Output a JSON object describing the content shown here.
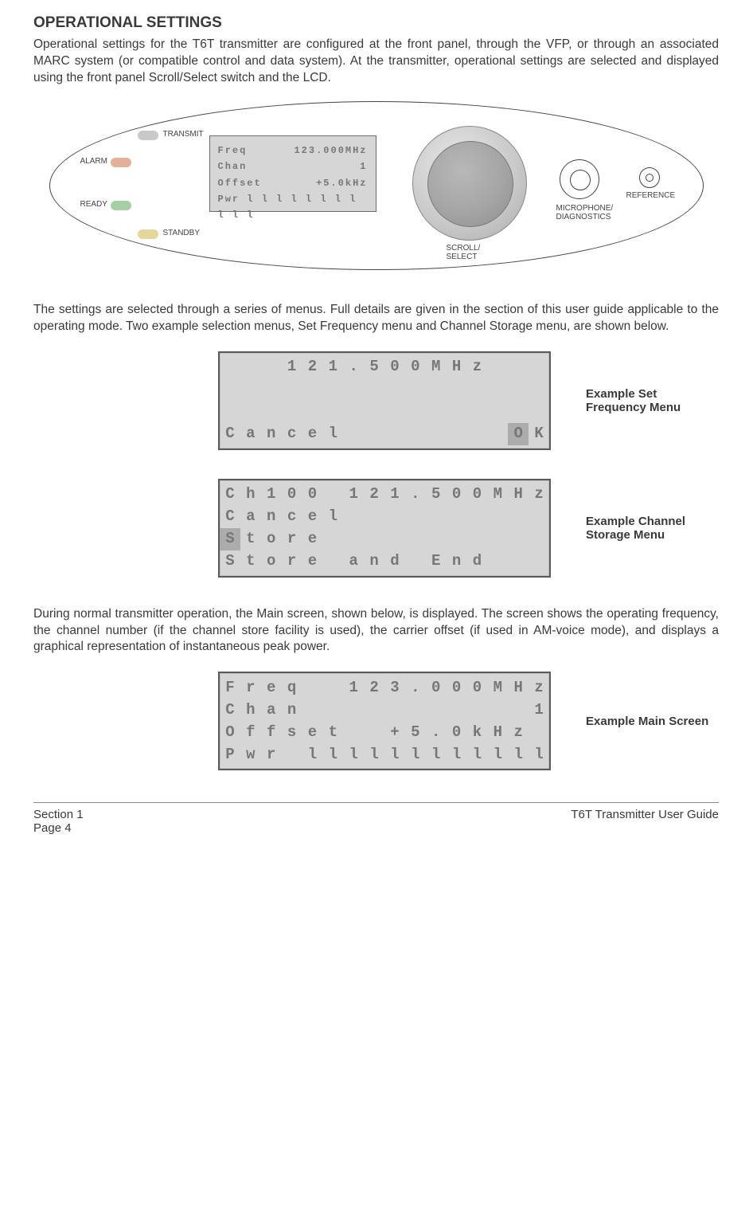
{
  "heading": "OPERATIONAL SETTINGS",
  "para1": "Operational settings for the T6T transmitter are configured at the front panel, through the VFP, or through an associated MARC system (or compatible control and data system). At the transmitter, operational settings are selected and displayed using the front panel Scroll/Select switch and the LCD.",
  "panel": {
    "led1": {
      "label": "TRANSMIT",
      "color": "#c9c9c9"
    },
    "led2": {
      "label": "ALARM",
      "color": "#e3b19a"
    },
    "led3": {
      "label": "READY",
      "color": "#a6cfa6"
    },
    "led4": {
      "label": "STANDBY",
      "color": "#e3d79a"
    },
    "lcd": {
      "l1a": "Freq",
      "l1b": "123.000MHz",
      "l2a": "Chan",
      "l2b": "1",
      "l3a": "Offset",
      "l3b": "+5.0kHz",
      "l4": "Pwr  l l l l l l l l l l l"
    },
    "knob_label": "SCROLL/\nSELECT",
    "port_label": "MICROPHONE/\nDIAGNOSTICS",
    "ref_label": "REFERENCE"
  },
  "para2": "The settings are selected through a series of menus. Full details are given in the section of this user guide applicable to the operating mode. Two example selection menus, Set Frequency menu and Channel Storage menu, are shown below.",
  "menu1": {
    "caption": "Example Set Frequency Menu",
    "rows": [
      [
        " ",
        " ",
        " ",
        "1",
        "2",
        "1",
        ".",
        "5",
        "0",
        "0",
        "M",
        "H",
        "z",
        " ",
        " ",
        " "
      ],
      [
        " ",
        " ",
        " ",
        " ",
        " ",
        " ",
        " ",
        " ",
        " ",
        " ",
        " ",
        " ",
        " ",
        " ",
        " ",
        " "
      ],
      [
        " ",
        " ",
        " ",
        " ",
        " ",
        " ",
        " ",
        " ",
        " ",
        " ",
        " ",
        " ",
        " ",
        " ",
        " ",
        " "
      ],
      [
        "C",
        "a",
        "n",
        "c",
        "e",
        "l",
        " ",
        " ",
        " ",
        " ",
        " ",
        " ",
        " ",
        " ",
        "O",
        "K"
      ]
    ],
    "cursor": [
      3,
      14
    ]
  },
  "menu2": {
    "caption": "Example Channel Storage Menu",
    "rows": [
      [
        "C",
        "h",
        "1",
        "0",
        "0",
        " ",
        "1",
        "2",
        "1",
        ".",
        "5",
        "0",
        "0",
        "M",
        "H",
        "z"
      ],
      [
        "C",
        "a",
        "n",
        "c",
        "e",
        "l",
        " ",
        " ",
        " ",
        " ",
        " ",
        " ",
        " ",
        " ",
        " ",
        " "
      ],
      [
        "S",
        "t",
        "o",
        "r",
        "e",
        " ",
        " ",
        " ",
        " ",
        " ",
        " ",
        " ",
        " ",
        " ",
        " ",
        " "
      ],
      [
        "S",
        "t",
        "o",
        "r",
        "e",
        " ",
        "a",
        "n",
        "d",
        " ",
        "E",
        "n",
        "d",
        " ",
        " ",
        " "
      ]
    ],
    "cursor": [
      2,
      0
    ]
  },
  "para3": "During normal transmitter operation, the Main screen, shown below, is displayed. The screen shows the operating frequency, the channel number (if the channel store facility is used), the carrier offset (if used in AM-voice mode), and displays a graphical representation of instantaneous peak power.",
  "menu3": {
    "caption": "Example Main Screen",
    "rows": [
      [
        "F",
        "r",
        "e",
        "q",
        " ",
        " ",
        "1",
        "2",
        "3",
        ".",
        "0",
        "0",
        "0",
        "M",
        "H",
        "z"
      ],
      [
        "C",
        "h",
        "a",
        "n",
        " ",
        " ",
        " ",
        " ",
        " ",
        " ",
        " ",
        " ",
        " ",
        " ",
        " ",
        "1"
      ],
      [
        "O",
        "f",
        "f",
        "s",
        "e",
        "t",
        " ",
        " ",
        "+",
        "5",
        ".",
        "0",
        "k",
        "H",
        "z",
        " "
      ],
      [
        "P",
        "w",
        "r",
        " ",
        "l",
        "l",
        "l",
        "l",
        "l",
        "l",
        "l",
        "l",
        "l",
        "l",
        "l",
        "l"
      ]
    ]
  },
  "footer": {
    "left1": "Section 1",
    "left2": "Page 4",
    "right": "T6T Transmitter User Guide"
  }
}
